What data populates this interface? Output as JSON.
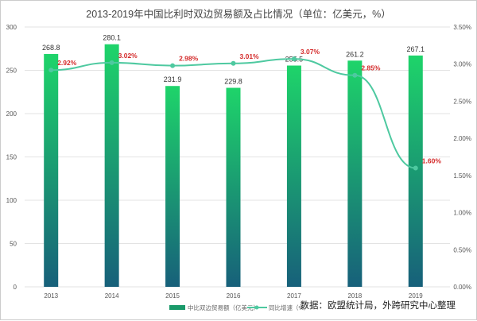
{
  "chart_data": {
    "type": "bar+line",
    "title": "2013-2019年中国比利时双边贸易额及占比情况（单位：亿美元，%）",
    "categories": [
      "2013",
      "2014",
      "2015",
      "2016",
      "2017",
      "2018",
      "2019"
    ],
    "series": [
      {
        "name": "中比双边贸易额（亿美元）",
        "type": "bar",
        "axis": "left",
        "values": [
          268.8,
          280.1,
          231.9,
          229.8,
          255.5,
          261.2,
          267.1
        ]
      },
      {
        "name": "同比增速（%）",
        "type": "line",
        "axis": "right",
        "values": [
          2.92,
          3.02,
          2.98,
          3.01,
          3.07,
          2.85,
          1.6
        ]
      }
    ],
    "left_axis": {
      "ylim": [
        0,
        300
      ],
      "ticks": [
        "0",
        "50",
        "100",
        "150",
        "200",
        "250",
        "300"
      ]
    },
    "right_axis": {
      "ylim": [
        0,
        3.5
      ],
      "ticks": [
        "0.00%",
        "0.50%",
        "1.00%",
        "1.50%",
        "2.00%",
        "2.50%",
        "3.00%",
        "3.50%"
      ]
    },
    "line_labels": [
      "2.92%",
      "3.02%",
      "2.98%",
      "3.01%",
      "3.07%",
      "2.85%",
      "1.60%"
    ],
    "bar_labels": [
      "268.8",
      "280.1",
      "231.9",
      "229.8",
      "255.5",
      "261.2",
      "267.1"
    ],
    "grid": true,
    "legend": "bottom",
    "colors": {
      "bar_top": "#1ed46a",
      "bar_bottom": "#17607a",
      "line": "#4ec9a0",
      "line_label": "#d42a2a"
    }
  },
  "source": "数据：欧盟统计局，外跨研究中心整理"
}
